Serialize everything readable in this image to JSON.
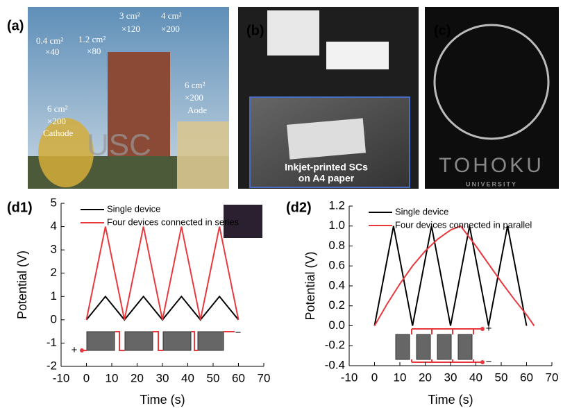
{
  "panels": {
    "a": {
      "label": "(a)",
      "texts": [
        "0.4 cm²",
        "×40",
        "1.2 cm²",
        "×80",
        "3 cm²",
        "×120",
        "4 cm²",
        "×200",
        "6 cm²",
        "×200",
        "Cathode",
        "6 cm²",
        "×200",
        "Aode",
        "USC"
      ]
    },
    "b": {
      "label": "(b)",
      "texts": [
        "Inkjet-printed SCs",
        "on A4 paper"
      ]
    },
    "c": {
      "label": "(c)",
      "texts": [
        "TOHOKU",
        "UNIVERSITY"
      ]
    }
  },
  "chart_data": [
    {
      "type": "line",
      "label": "(d1)",
      "xlabel": "Time (s)",
      "ylabel": "Potential (V)",
      "xlim": [
        -10,
        70
      ],
      "xticks": [
        -10,
        0,
        10,
        20,
        30,
        40,
        50,
        60,
        70
      ],
      "ylim": [
        -2,
        5
      ],
      "yticks": [
        -2,
        -1,
        0,
        1,
        2,
        3,
        4,
        5
      ],
      "legend": "upper left",
      "annotations": [
        "+",
        "−"
      ],
      "series": [
        {
          "name": "Single device",
          "color": "#000000",
          "x": [
            0,
            7.5,
            15,
            22.5,
            30,
            37.5,
            45,
            52.5,
            60
          ],
          "values": [
            0,
            1,
            0,
            1,
            0,
            1,
            0,
            1,
            0
          ]
        },
        {
          "name": "Four devices connected in series",
          "color": "#e8383d",
          "x": [
            0,
            7.5,
            15,
            22.5,
            30,
            37.5,
            45,
            52.5,
            60
          ],
          "values": [
            0,
            4,
            0,
            4,
            0,
            4,
            0,
            4,
            0
          ]
        }
      ]
    },
    {
      "type": "line",
      "label": "(d2)",
      "xlabel": "Time (s)",
      "ylabel": "Potential (V)",
      "xlim": [
        -10,
        70
      ],
      "xticks": [
        -10,
        0,
        10,
        20,
        30,
        40,
        50,
        60,
        70
      ],
      "ylim": [
        -0.4,
        1.2
      ],
      "yticks": [
        -0.4,
        -0.2,
        {
          "value": 0,
          "label": "0.0"
        },
        0.2,
        0.4,
        0.6,
        0.8,
        {
          "value": 1,
          "label": "1.0"
        },
        1.2
      ],
      "legend": "upper left",
      "annotations": [
        "+",
        "−"
      ],
      "series": [
        {
          "name": "Single device",
          "color": "#000000",
          "x": [
            0,
            7.5,
            15,
            22.5,
            30,
            37.5,
            45,
            52.5,
            60
          ],
          "values": [
            0,
            1,
            0,
            1,
            0,
            1,
            0,
            1,
            0
          ]
        },
        {
          "name": "Four devices connected in parallel",
          "color": "#e8383d",
          "x": [
            0,
            5,
            10,
            15,
            20,
            25,
            30,
            34,
            40,
            45,
            50,
            55,
            60,
            63
          ],
          "values": [
            0,
            0.22,
            0.42,
            0.6,
            0.75,
            0.87,
            0.96,
            1,
            0.8,
            0.62,
            0.44,
            0.27,
            0.11,
            0
          ]
        }
      ]
    }
  ]
}
